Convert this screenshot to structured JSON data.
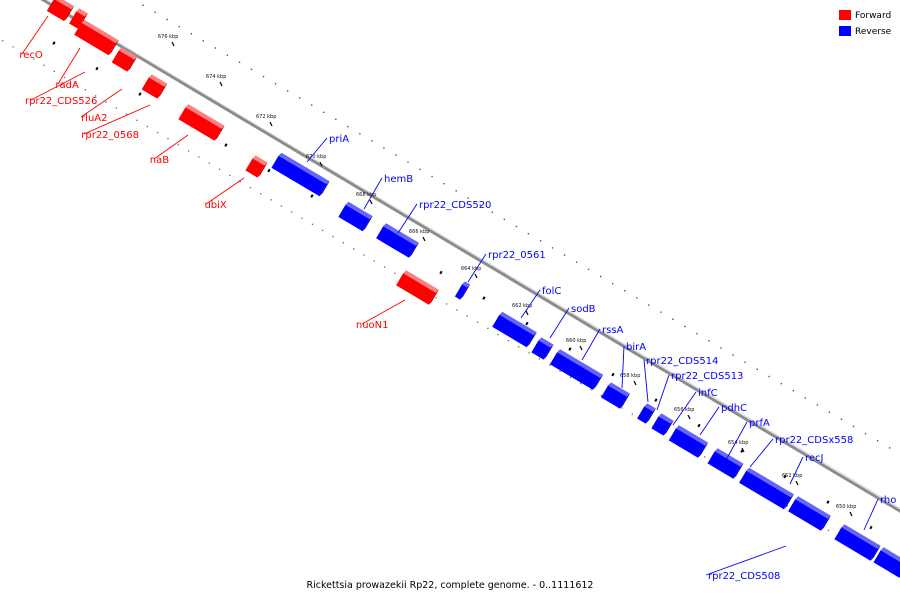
{
  "caption": "Rickettsia prowazekii Rp22, complete genome. - 0..1111612",
  "legend": [
    {
      "label": "Forward",
      "color": "#ff0000"
    },
    {
      "label": "Reverse",
      "color": "#0000ff"
    }
  ],
  "colors": {
    "forward": "#ff0000",
    "reverse": "#0000ff",
    "backbone": "#8c8c8c"
  },
  "ticks": [
    "676 kbp",
    "674 kbp",
    "672 kbp",
    "670 kbp",
    "668 kbp",
    "666 kbp",
    "664 kbp",
    "662 kbp",
    "660 kbp",
    "658 kbp",
    "656 kbp",
    "654 kbp",
    "652 kbp",
    "650 kbp"
  ],
  "genes": [
    {
      "name": "recO",
      "strand": "forward"
    },
    {
      "name": "radA",
      "strand": "forward"
    },
    {
      "name": "rpr22_CDS526",
      "strand": "forward"
    },
    {
      "name": "rluA2",
      "strand": "forward"
    },
    {
      "name": "rpr22_0568",
      "strand": "forward"
    },
    {
      "name": "naB",
      "strand": "forward"
    },
    {
      "name": "ubiX",
      "strand": "forward"
    },
    {
      "name": "nuoN1",
      "strand": "forward"
    },
    {
      "name": "priA",
      "strand": "reverse"
    },
    {
      "name": "hemB",
      "strand": "reverse"
    },
    {
      "name": "rpr22_CDS520",
      "strand": "reverse"
    },
    {
      "name": "rpr22_0561",
      "strand": "reverse"
    },
    {
      "name": "folC",
      "strand": "reverse"
    },
    {
      "name": "sodB",
      "strand": "reverse"
    },
    {
      "name": "rssA",
      "strand": "reverse"
    },
    {
      "name": "birA",
      "strand": "reverse"
    },
    {
      "name": "rpr22_CDS514",
      "strand": "reverse"
    },
    {
      "name": "rpr22_CDS513",
      "strand": "reverse"
    },
    {
      "name": "infC",
      "strand": "reverse"
    },
    {
      "name": "pdhC",
      "strand": "reverse"
    },
    {
      "name": "prfA",
      "strand": "reverse"
    },
    {
      "name": "rpr22_CDSx558",
      "strand": "reverse"
    },
    {
      "name": "recJ",
      "strand": "reverse"
    },
    {
      "name": "rho",
      "strand": "reverse"
    },
    {
      "name": "rpr22_CDS508",
      "strand": "reverse"
    }
  ]
}
